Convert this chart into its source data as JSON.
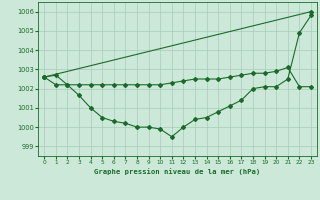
{
  "background_color": "#cce8d8",
  "grid_color": "#aaccbb",
  "line_color": "#1a6b2a",
  "title": "Graphe pression niveau de la mer (hPa)",
  "xlim": [
    -0.5,
    23.5
  ],
  "ylim": [
    998.5,
    1006.5
  ],
  "yticks": [
    999,
    1000,
    1001,
    1002,
    1003,
    1004,
    1005,
    1006
  ],
  "xticks": [
    0,
    1,
    2,
    3,
    4,
    5,
    6,
    7,
    8,
    9,
    10,
    11,
    12,
    13,
    14,
    15,
    16,
    17,
    18,
    19,
    20,
    21,
    22,
    23
  ],
  "series1_x": [
    0,
    1,
    2,
    3,
    4,
    5,
    6,
    7,
    8,
    9,
    10,
    11,
    12,
    13,
    14,
    15,
    16,
    17,
    18,
    19,
    20,
    21,
    22,
    23
  ],
  "series1_y": [
    1002.6,
    1002.7,
    1002.2,
    1001.65,
    1001.0,
    1000.5,
    1000.3,
    1000.2,
    1000.0,
    1000.0,
    999.9,
    999.5,
    1000.0,
    1000.4,
    1000.5,
    1000.8,
    1001.1,
    1001.4,
    1002.0,
    1002.1,
    1002.1,
    1002.5,
    1004.9,
    1005.8
  ],
  "series2_x": [
    0,
    1,
    2,
    3,
    4,
    5,
    6,
    7,
    8,
    9,
    10,
    11,
    12,
    13,
    14,
    15,
    16,
    17,
    18,
    19,
    20,
    21,
    22,
    23
  ],
  "series2_y": [
    1002.6,
    1002.2,
    1002.2,
    1002.2,
    1002.2,
    1002.2,
    1002.2,
    1002.2,
    1002.2,
    1002.2,
    1002.2,
    1002.3,
    1002.4,
    1002.5,
    1002.5,
    1002.5,
    1002.6,
    1002.7,
    1002.8,
    1002.8,
    1002.9,
    1003.1,
    1002.1,
    1002.1
  ],
  "series3_x": [
    0,
    23
  ],
  "series3_y": [
    1002.6,
    1006.0
  ]
}
